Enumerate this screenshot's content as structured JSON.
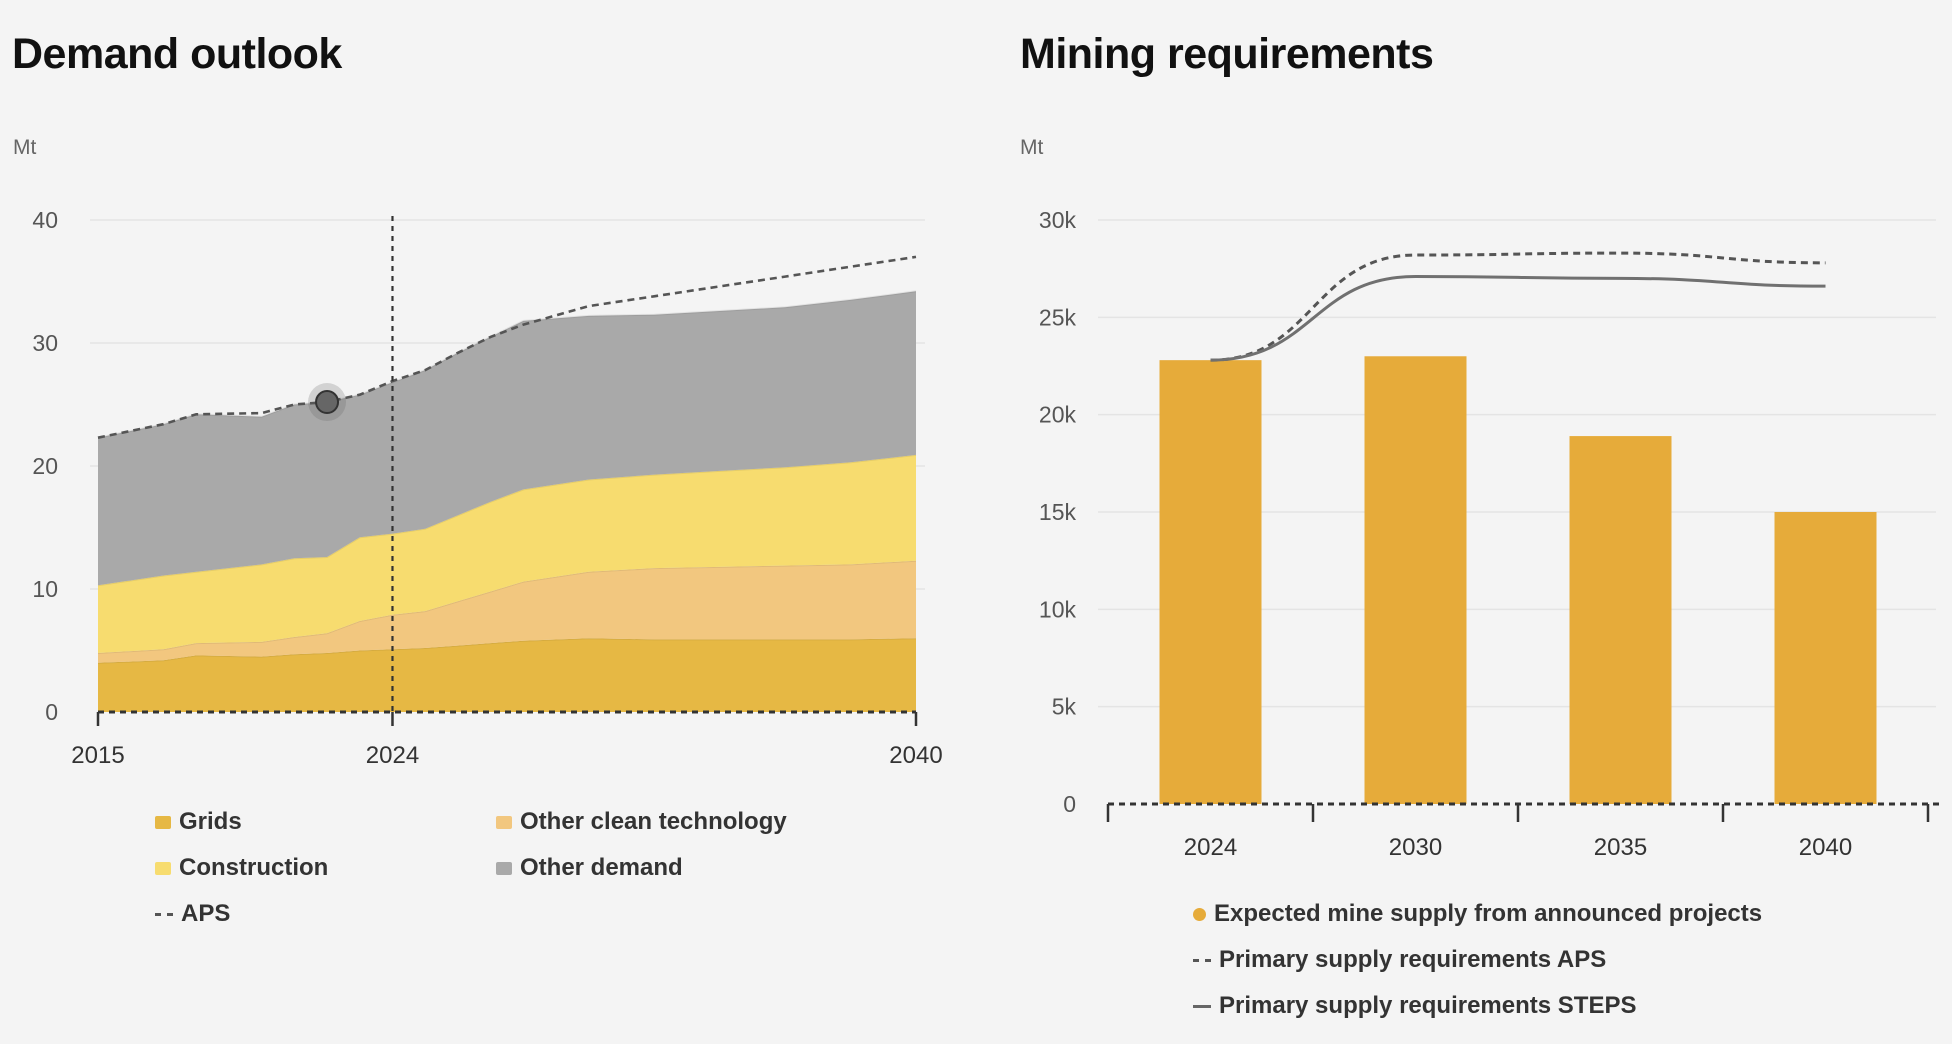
{
  "colors": {
    "grids": "#e6b844",
    "other_clean": "#f2c77f",
    "construction": "#f7dc6f",
    "other_demand": "#a9a9a9",
    "aps": "#555555",
    "steps": "#707070",
    "mine_supply": "#e6ab3a"
  },
  "chart_data": [
    {
      "type": "area",
      "title": "Demand outlook",
      "ylabel": "Mt",
      "xlim": [
        2015,
        2040
      ],
      "ylim": [
        0,
        40
      ],
      "yticks": [
        "0",
        "10",
        "20",
        "30",
        "40"
      ],
      "xticks": [
        "2015",
        "2024",
        "2040"
      ],
      "x_marker": 2024,
      "highlight_point": {
        "x": 2022,
        "y": 25.2
      },
      "x": [
        2015,
        2017,
        2018,
        2020,
        2021,
        2022,
        2023,
        2024,
        2025,
        2026,
        2027,
        2028,
        2030,
        2032,
        2034,
        2036,
        2038,
        2040
      ],
      "series": [
        {
          "name": "Grids",
          "values": [
            4.0,
            4.2,
            4.6,
            4.5,
            4.7,
            4.8,
            5.0,
            5.1,
            5.2,
            5.4,
            5.6,
            5.8,
            6.0,
            5.9,
            5.9,
            5.9,
            5.9,
            6.0
          ]
        },
        {
          "name": "Other clean technology",
          "values": [
            0.8,
            0.9,
            1.0,
            1.2,
            1.4,
            1.6,
            2.4,
            2.8,
            3.0,
            3.6,
            4.2,
            4.8,
            5.4,
            5.8,
            5.9,
            6.0,
            6.1,
            6.3
          ]
        },
        {
          "name": "Construction",
          "values": [
            5.5,
            6.0,
            5.8,
            6.3,
            6.4,
            6.2,
            6.8,
            6.6,
            6.7,
            7.0,
            7.3,
            7.5,
            7.5,
            7.6,
            7.8,
            8.0,
            8.3,
            8.6
          ]
        },
        {
          "name": "Other demand",
          "values": [
            12.0,
            12.3,
            12.8,
            12.0,
            12.5,
            12.6,
            11.6,
            12.3,
            12.9,
            13.2,
            13.4,
            13.7,
            13.3,
            13.0,
            13.0,
            13.0,
            13.2,
            13.3
          ]
        }
      ],
      "aps": {
        "name": "APS",
        "values": [
          22.3,
          23.4,
          24.2,
          24.3,
          25.0,
          25.2,
          25.8,
          26.9,
          27.8,
          29.2,
          30.5,
          31.5,
          33.0,
          33.8,
          34.6,
          35.4,
          36.2,
          37.0
        ]
      },
      "legend": [
        {
          "key": "grids",
          "label": "Grids",
          "style": "square"
        },
        {
          "key": "other_clean",
          "label": "Other clean technology",
          "style": "square"
        },
        {
          "key": "construction",
          "label": "Construction",
          "style": "square"
        },
        {
          "key": "other_demand",
          "label": "Other demand",
          "style": "square"
        },
        {
          "key": "aps",
          "label": "APS",
          "style": "dash"
        }
      ]
    },
    {
      "type": "bar",
      "title": "Mining requirements",
      "ylabel": "Mt",
      "ylim": [
        0,
        30000
      ],
      "yticks": [
        "0",
        "5k",
        "10k",
        "15k",
        "20k",
        "25k",
        "30k"
      ],
      "categories": [
        "2024",
        "2030",
        "2035",
        "2040"
      ],
      "series": [
        {
          "name": "Expected mine supply from announced projects",
          "values": [
            22800,
            23000,
            18900,
            15000
          ]
        }
      ],
      "lines": [
        {
          "name": "Primary supply requirements APS",
          "style": "dash",
          "values": [
            22800,
            28200,
            28300,
            27800
          ]
        },
        {
          "name": "Primary supply requirements STEPS",
          "style": "solid",
          "values": [
            22800,
            27100,
            27000,
            26600
          ]
        }
      ],
      "legend": [
        {
          "key": "mine_supply",
          "label": "Expected mine supply from announced projects",
          "style": "dot"
        },
        {
          "key": "aps",
          "label": "Primary supply requirements APS",
          "style": "dash"
        },
        {
          "key": "steps",
          "label": "Primary supply requirements STEPS",
          "style": "solid"
        }
      ]
    }
  ]
}
